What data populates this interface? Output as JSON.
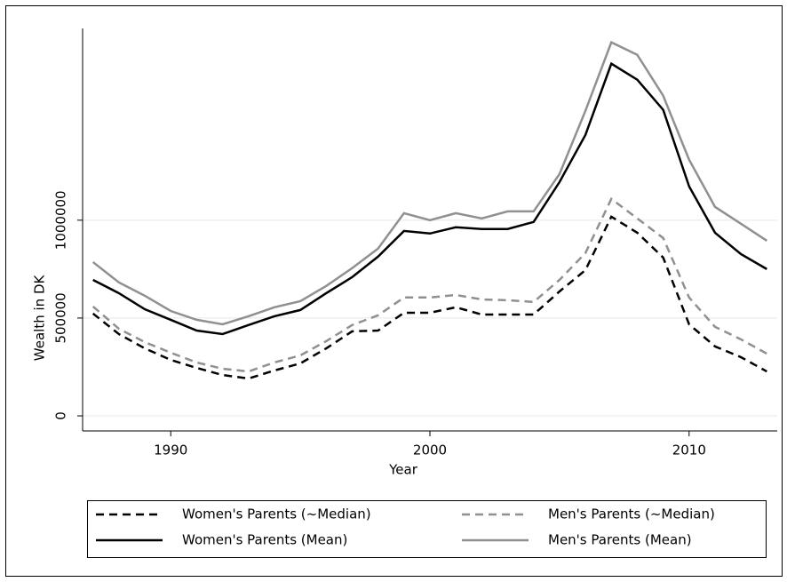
{
  "chart_data": {
    "type": "line",
    "x_label": "Year",
    "y_label": "Wealth in DK",
    "x": [
      1987,
      1988,
      1989,
      1990,
      1991,
      1992,
      1993,
      1994,
      1995,
      1996,
      1997,
      1998,
      1999,
      2000,
      2001,
      2002,
      2003,
      2004,
      2005,
      2006,
      2007,
      2008,
      2009,
      2010,
      2011,
      2012,
      2013
    ],
    "series": [
      {
        "name": "Women's Parents (~Median)",
        "color": "#000000",
        "line_style": "dashed",
        "values": [
          523000,
          418000,
          345000,
          286000,
          245000,
          209000,
          191000,
          232000,
          268000,
          345000,
          432000,
          436000,
          527000,
          527000,
          555000,
          518000,
          518000,
          518000,
          636000,
          745000,
          1018000,
          936000,
          809000,
          468000,
          355000,
          300000,
          227000
        ]
      },
      {
        "name": "Men's Parents (~Median)",
        "color": "#909090",
        "line_style": "dashed",
        "values": [
          559000,
          445000,
          377000,
          323000,
          273000,
          241000,
          227000,
          273000,
          309000,
          382000,
          464000,
          514000,
          605000,
          605000,
          618000,
          595000,
          591000,
          582000,
          695000,
          832000,
          1109000,
          1009000,
          909000,
          605000,
          455000,
          391000,
          318000
        ]
      },
      {
        "name": "Women's Parents (Mean)",
        "color": "#000000",
        "line_style": "solid",
        "values": [
          695000,
          627000,
          545000,
          491000,
          436000,
          418000,
          464000,
          509000,
          541000,
          627000,
          709000,
          814000,
          945000,
          932000,
          964000,
          955000,
          955000,
          991000,
          1195000,
          1436000,
          1800000,
          1718000,
          1564000,
          1173000,
          936000,
          827000,
          750000
        ]
      },
      {
        "name": "Men's Parents (Mean)",
        "color": "#909090",
        "line_style": "solid",
        "values": [
          786000,
          682000,
          614000,
          536000,
          491000,
          468000,
          509000,
          555000,
          586000,
          664000,
          755000,
          855000,
          1036000,
          1000000,
          1036000,
          1009000,
          1045000,
          1045000,
          1236000,
          1559000,
          1909000,
          1845000,
          1636000,
          1309000,
          1068000,
          982000,
          895000
        ]
      }
    ],
    "xlim": [
      1986.6,
      2013.4
    ],
    "ylim": [
      -77000,
      1980000
    ],
    "xticks": [
      1990,
      2000,
      2010
    ],
    "yticks": [
      0,
      500000,
      1000000
    ],
    "grid": true,
    "grid_color": "#e8e8e8",
    "legend_position": "bottom"
  }
}
